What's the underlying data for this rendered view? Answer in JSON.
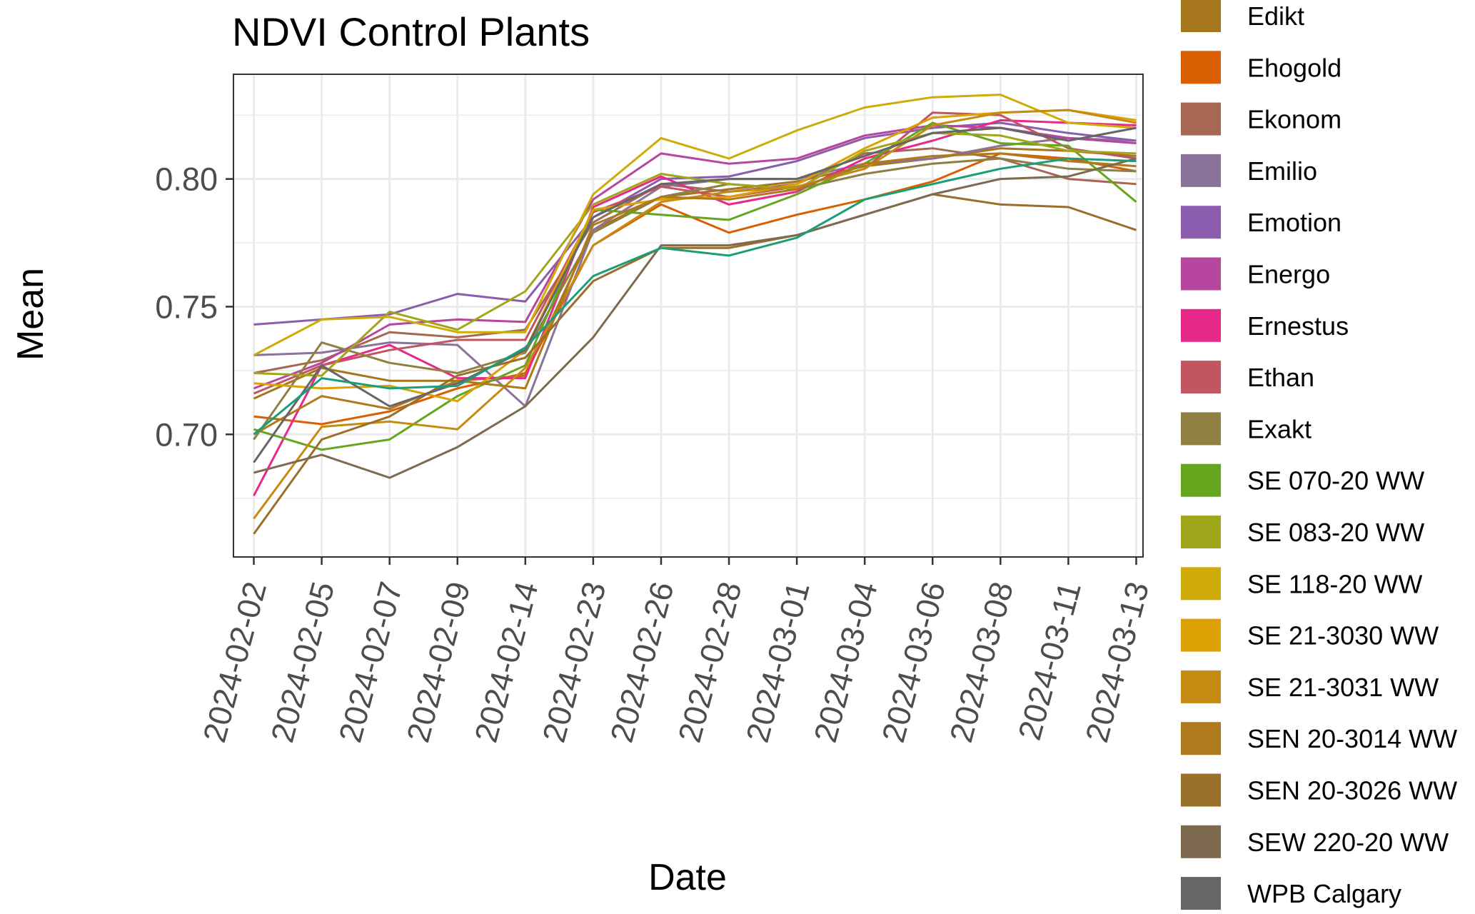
{
  "chart_data": {
    "type": "line",
    "title": "NDVI Control Plants",
    "xlabel": "Date",
    "ylabel": "Mean",
    "x": [
      "2024-02-02",
      "2024-02-05",
      "2024-02-07",
      "2024-02-09",
      "2024-02-14",
      "2024-02-23",
      "2024-02-26",
      "2024-02-28",
      "2024-03-01",
      "2024-03-04",
      "2024-03-06",
      "2024-03-08",
      "2024-03-11",
      "2024-03-13"
    ],
    "ylim": [
      0.652,
      0.841
    ],
    "yticks": [
      0.7,
      0.75,
      0.8
    ],
    "ytick_labels": [
      "0.70",
      "0.75",
      "0.80"
    ],
    "grid": true,
    "legend_position": "right",
    "series": [
      {
        "name": "Edikt",
        "color": "#A6761D",
        "values": [
          0.714,
          0.726,
          0.721,
          0.721,
          0.723,
          0.78,
          0.793,
          0.796,
          0.799,
          0.805,
          0.808,
          0.812,
          0.811,
          0.809
        ]
      },
      {
        "name": "Ehogold",
        "color": "#D95F02",
        "values": [
          0.707,
          0.704,
          0.709,
          0.718,
          0.724,
          0.774,
          0.79,
          0.779,
          0.786,
          0.792,
          0.799,
          0.81,
          0.808,
          0.803
        ]
      },
      {
        "name": "Ekonom",
        "color": "#A66753",
        "values": [
          0.724,
          0.729,
          0.74,
          0.738,
          0.741,
          0.783,
          0.798,
          0.795,
          0.798,
          0.81,
          0.812,
          0.808,
          0.8,
          0.798
        ]
      },
      {
        "name": "Emilio",
        "color": "#8A729B",
        "values": [
          0.731,
          0.732,
          0.736,
          0.735,
          0.711,
          0.78,
          0.797,
          0.8,
          0.8,
          0.806,
          0.808,
          0.813,
          0.816,
          0.815
        ]
      },
      {
        "name": "Emotion",
        "color": "#8C5DAE",
        "values": [
          0.743,
          0.745,
          0.747,
          0.755,
          0.752,
          0.785,
          0.8,
          0.801,
          0.807,
          0.816,
          0.82,
          0.822,
          0.818,
          0.815
        ]
      },
      {
        "name": "Energo",
        "color": "#B7469F",
        "values": [
          0.718,
          0.728,
          0.743,
          0.745,
          0.744,
          0.792,
          0.81,
          0.806,
          0.808,
          0.817,
          0.821,
          0.82,
          0.816,
          0.814
        ]
      },
      {
        "name": "Ernestus",
        "color": "#E7298A",
        "values": [
          0.676,
          0.727,
          0.735,
          0.722,
          0.722,
          0.789,
          0.801,
          0.79,
          0.795,
          0.808,
          0.815,
          0.823,
          0.822,
          0.821
        ]
      },
      {
        "name": "Ethan",
        "color": "#C25562",
        "values": [
          0.716,
          0.727,
          0.733,
          0.737,
          0.737,
          0.787,
          0.797,
          0.793,
          0.797,
          0.804,
          0.826,
          0.825,
          0.812,
          0.808
        ]
      },
      {
        "name": "Exakt",
        "color": "#8F7F41",
        "values": [
          0.698,
          0.736,
          0.728,
          0.724,
          0.732,
          0.779,
          0.793,
          0.798,
          0.796,
          0.802,
          0.806,
          0.808,
          0.804,
          0.803
        ]
      },
      {
        "name": "SE 070-20 WW",
        "color": "#66A61E",
        "values": [
          0.702,
          0.694,
          0.698,
          0.715,
          0.727,
          0.788,
          0.786,
          0.784,
          0.794,
          0.806,
          0.822,
          0.814,
          0.813,
          0.791
        ]
      },
      {
        "name": "SE 083-20 WW",
        "color": "#9FA619",
        "values": [
          0.724,
          0.723,
          0.748,
          0.741,
          0.756,
          0.79,
          0.802,
          0.798,
          0.796,
          0.811,
          0.818,
          0.817,
          0.811,
          0.81
        ]
      },
      {
        "name": "SE 118-20 WW",
        "color": "#CFAB09",
        "values": [
          0.731,
          0.745,
          0.746,
          0.74,
          0.74,
          0.794,
          0.816,
          0.808,
          0.819,
          0.828,
          0.832,
          0.833,
          0.822,
          0.82
        ]
      },
      {
        "name": "SE 21-3030 WW",
        "color": "#DDA005",
        "values": [
          0.72,
          0.718,
          0.719,
          0.713,
          0.733,
          0.788,
          0.792,
          0.793,
          0.798,
          0.812,
          0.824,
          0.826,
          0.827,
          0.823
        ]
      },
      {
        "name": "SE 21-3031 WW",
        "color": "#C68B12",
        "values": [
          0.667,
          0.703,
          0.705,
          0.702,
          0.726,
          0.774,
          0.791,
          0.795,
          0.797,
          0.804,
          0.821,
          0.826,
          0.827,
          0.822
        ]
      },
      {
        "name": "SEN 20-3014 WW",
        "color": "#AE7A1B",
        "values": [
          0.7,
          0.715,
          0.71,
          0.721,
          0.718,
          0.782,
          0.793,
          0.792,
          0.796,
          0.806,
          0.809,
          0.81,
          0.807,
          0.805
        ]
      },
      {
        "name": "SEN 20-3026 WW",
        "color": "#9A6E2B",
        "values": [
          0.661,
          0.698,
          0.707,
          0.723,
          0.73,
          0.76,
          0.773,
          0.773,
          0.778,
          0.786,
          0.794,
          0.79,
          0.789,
          0.78
        ]
      },
      {
        "name": "SEW 220-20 WW",
        "color": "#7E6B4F",
        "values": [
          0.685,
          0.692,
          0.683,
          0.695,
          0.711,
          0.738,
          0.774,
          0.774,
          0.778,
          0.786,
          0.794,
          0.8,
          0.801,
          0.808
        ]
      },
      {
        "name": "WPB Calgary",
        "color": "#666666",
        "values": [
          0.689,
          0.727,
          0.711,
          0.72,
          0.733,
          0.785,
          0.798,
          0.8,
          0.8,
          0.809,
          0.818,
          0.82,
          0.815,
          0.82
        ]
      },
      {
        "name": "",
        "color": "#1B9E77",
        "values": [
          0.7,
          0.722,
          0.718,
          0.719,
          0.734,
          0.762,
          0.773,
          0.77,
          0.777,
          0.792,
          0.798,
          0.804,
          0.808,
          0.807
        ]
      }
    ]
  }
}
